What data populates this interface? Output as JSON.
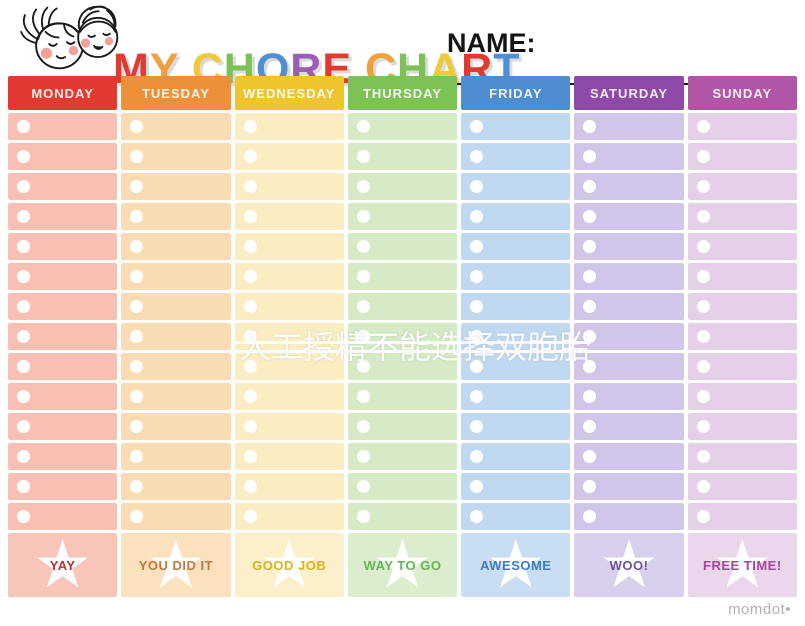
{
  "header": {
    "title": "MY CHORE CHART",
    "title_letters": [
      {
        "ch": "M",
        "color": "#e23a31"
      },
      {
        "ch": "Y",
        "color": "#f0a13b"
      },
      {
        "ch": " ",
        "color": ""
      },
      {
        "ch": "C",
        "color": "#f0c93a"
      },
      {
        "ch": "H",
        "color": "#7cc155"
      },
      {
        "ch": "O",
        "color": "#4f8fd2"
      },
      {
        "ch": "R",
        "color": "#9a5fb5"
      },
      {
        "ch": "E",
        "color": "#e23a31"
      },
      {
        "ch": " ",
        "color": ""
      },
      {
        "ch": "C",
        "color": "#f0a13b"
      },
      {
        "ch": "H",
        "color": "#7cc155"
      },
      {
        "ch": "A",
        "color": "#f0c93a"
      },
      {
        "ch": "R",
        "color": "#e23a31"
      },
      {
        "ch": "T",
        "color": "#4f8fd2"
      }
    ],
    "name_label": "NAME:",
    "kids_illustration": "girl-and-boy-faces"
  },
  "grid": {
    "rows_per_day": 14,
    "checkbox_color": "#ffffff",
    "star_icon": "white-star",
    "days": [
      {
        "label": "MONDAY",
        "header_color": "#e23a31",
        "cell_color": "#f8c0b3",
        "award": {
          "label": "YAY",
          "text_color": "#b5342c",
          "cell_color": "#f8c5b9"
        }
      },
      {
        "label": "TUESDAY",
        "header_color": "#ec9138",
        "cell_color": "#fadcb4",
        "award": {
          "label": "YOU DID IT",
          "text_color": "#c07a43",
          "cell_color": "#fbe1bd"
        }
      },
      {
        "label": "WEDNESDAY",
        "header_color": "#edc52f",
        "cell_color": "#faedc1",
        "award": {
          "label": "GOOD JOB",
          "text_color": "#ddb125",
          "cell_color": "#fbf0ca"
        }
      },
      {
        "label": "THURSDAY",
        "header_color": "#7dc254",
        "cell_color": "#d6eac6",
        "award": {
          "label": "WAY TO GO",
          "text_color": "#62b54f",
          "cell_color": "#dcedce"
        }
      },
      {
        "label": "FRIDAY",
        "header_color": "#4e8ed0",
        "cell_color": "#c0d8f0",
        "award": {
          "label": "AWESOME",
          "text_color": "#3d7cc4",
          "cell_color": "#c9def2"
        }
      },
      {
        "label": "SATURDAY",
        "header_color": "#8d4aa8",
        "cell_color": "#d1c6ea",
        "award": {
          "label": "WOO!",
          "text_color": "#6e4ea0",
          "cell_color": "#d9d0ee"
        }
      },
      {
        "label": "SUNDAY",
        "header_color": "#b156a6",
        "cell_color": "#e6cfe8",
        "award": {
          "label": "FREE TIME!",
          "text_color": "#a8449d",
          "cell_color": "#ead7ec"
        }
      }
    ]
  },
  "watermark": {
    "text": "人工授精不能选择双胞胎"
  },
  "footer": {
    "brand": "momdot•"
  }
}
